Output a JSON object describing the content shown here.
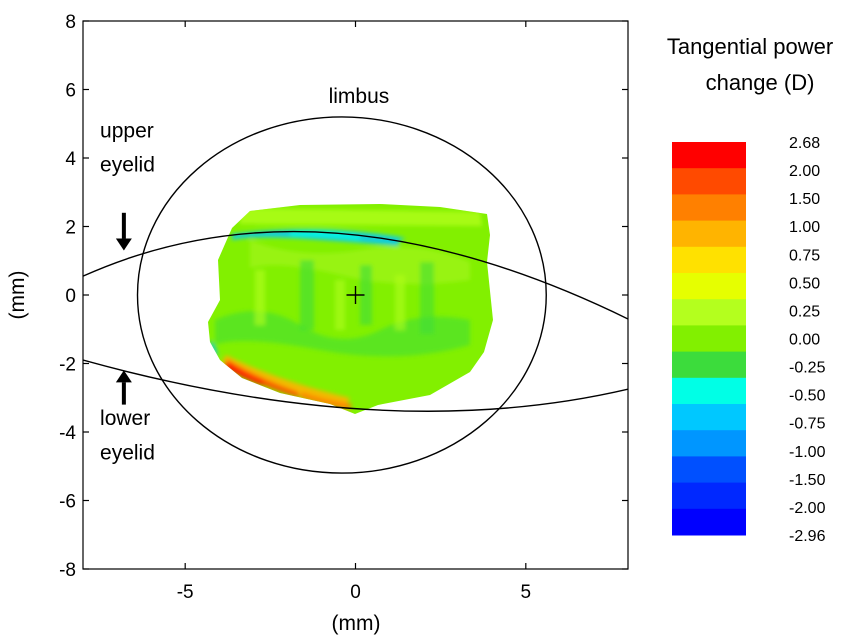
{
  "chart_data": {
    "type": "heatmap",
    "xlabel": "(mm)",
    "ylabel": "(mm)",
    "xlim": [
      -8,
      8
    ],
    "ylim": [
      -8,
      8
    ],
    "xticks": [
      -5,
      0,
      5
    ],
    "yticks": [
      8,
      6,
      4,
      2,
      0,
      -2,
      -4,
      -6,
      -8
    ],
    "grid": false,
    "map_extent": {
      "x": [
        -3.9,
        4.0
      ],
      "y": [
        -3.5,
        2.7
      ]
    },
    "map_level_description": "mostly 0.00 to 0.50 D green across the measured zone",
    "limbus": {
      "center": [
        -0.4,
        0
      ],
      "rx": 6.0,
      "ry": 5.2
    },
    "upper_eyelid": {
      "left": [
        -8,
        0.55
      ],
      "peak": [
        -0.5,
        1.8
      ],
      "right": [
        8,
        -0.7
      ]
    },
    "lower_eyelid": {
      "left": [
        -8,
        -1.9
      ],
      "trough": [
        0.5,
        -3.35
      ],
      "right": [
        8,
        -2.75
      ]
    },
    "center_marker": [
      0,
      0
    ],
    "annotations": [
      {
        "text": "limbus",
        "x": 0.1,
        "y": 5.6
      },
      {
        "text": "upper",
        "x": -7.5,
        "y": 4.6
      },
      {
        "text": "eyelid",
        "x": -7.5,
        "y": 3.6
      },
      {
        "text": "lower",
        "x": -7.5,
        "y": -3.8
      },
      {
        "text": "eyelid",
        "x": -7.5,
        "y": -4.8
      }
    ],
    "arrows": [
      {
        "name": "upper-eyelid-arrow",
        "x": -6.8,
        "direction": "down",
        "from_y": 2.4,
        "to_y": 1.3
      },
      {
        "name": "lower-eyelid-arrow",
        "x": -6.8,
        "direction": "up",
        "from_y": -3.2,
        "to_y": -2.2
      }
    ],
    "colorbar": {
      "title_line1": "Tangential power",
      "title_line2": "change (D)",
      "labels": [
        "2.68",
        "2.00",
        "1.50",
        "1.00",
        "0.75",
        "0.50",
        "0.25",
        "0.00",
        "-0.25",
        "-0.50",
        "-0.75",
        "-1.00",
        "-1.50",
        "-2.00",
        "-2.96"
      ],
      "colors": [
        "#ff0000",
        "#ff4a00",
        "#ff8000",
        "#ffb400",
        "#ffe100",
        "#e6ff00",
        "#b4ff1e",
        "#82f000",
        "#3cdc3c",
        "#00ffe6",
        "#00c8ff",
        "#0096ff",
        "#0050ff",
        "#0028ff",
        "#0000ff"
      ]
    }
  }
}
